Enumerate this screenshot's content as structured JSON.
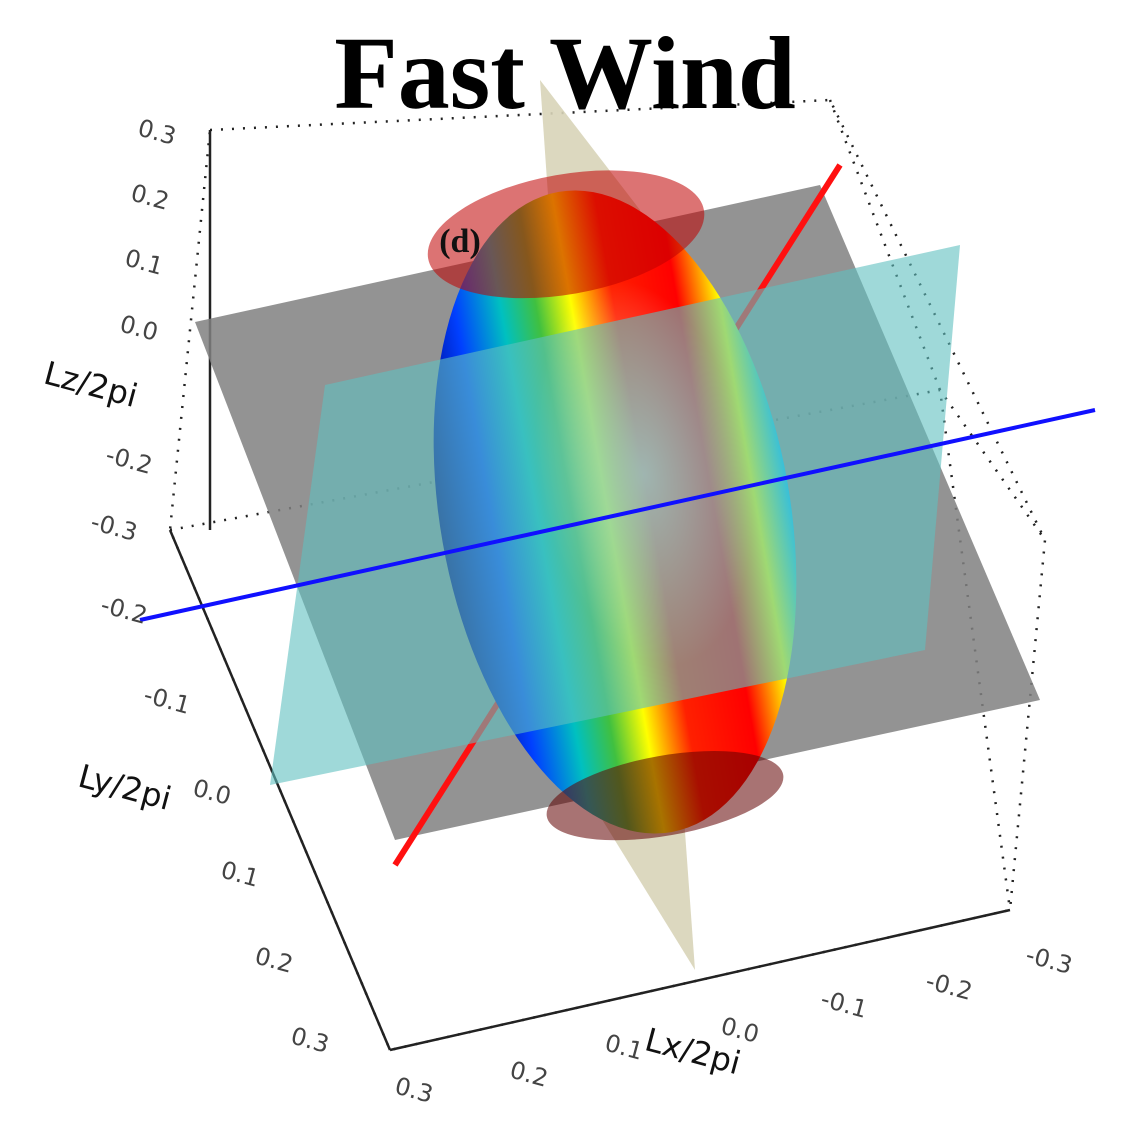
{
  "title": "Fast Wind",
  "panel_label": "(d)",
  "axes": {
    "z": {
      "label": "Lz/2pi",
      "ticks": [
        "0.3",
        "0.2",
        "0.1",
        "0.0",
        "-0.2",
        "-0.3"
      ]
    },
    "y": {
      "label": "Ly/2pi",
      "ticks": [
        "-0.2",
        "-0.1",
        "0.0",
        "0.1",
        "0.2",
        "0.3"
      ]
    },
    "x": {
      "label": "Lx/2pi",
      "ticks": [
        "0.3",
        "0.2",
        "0.1",
        "0.0",
        "-0.1",
        "-0.2",
        "-0.3"
      ]
    }
  }
}
